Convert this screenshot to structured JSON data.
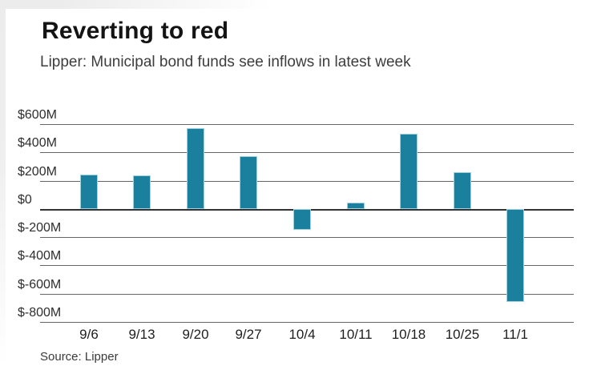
{
  "header": {
    "title": "Reverting to red",
    "subtitle": "Lipper: Municipal bond funds see inflows in latest week"
  },
  "source": "Source: Lipper",
  "colors": {
    "bar_fill": "#1b7f9e",
    "bar_edge": "#9fd3e2",
    "gridline": "#666666",
    "zero_line": "#333333"
  },
  "chart_data": {
    "type": "bar",
    "title": "Reverting to red",
    "subtitle": "Lipper: Municipal bond funds see inflows in latest week",
    "source": "Source: Lipper",
    "categories": [
      "9/6",
      "9/13",
      "9/20",
      "9/27",
      "10/4",
      "10/11",
      "10/18",
      "10/25",
      "11/1"
    ],
    "values": [
      245,
      240,
      570,
      375,
      -145,
      45,
      535,
      260,
      -655
    ],
    "units": "millions of dollars",
    "yticks": [
      600,
      400,
      200,
      0,
      -200,
      -400,
      -600,
      -800
    ],
    "ytick_labels": [
      "$600M",
      "$400M",
      "$200M",
      "$0",
      "$-200M",
      "$-400M",
      "$-600M",
      "$-800M"
    ],
    "ylim": [
      -800,
      600
    ],
    "xlabel": "",
    "ylabel": "",
    "grid": true,
    "legend": false
  }
}
